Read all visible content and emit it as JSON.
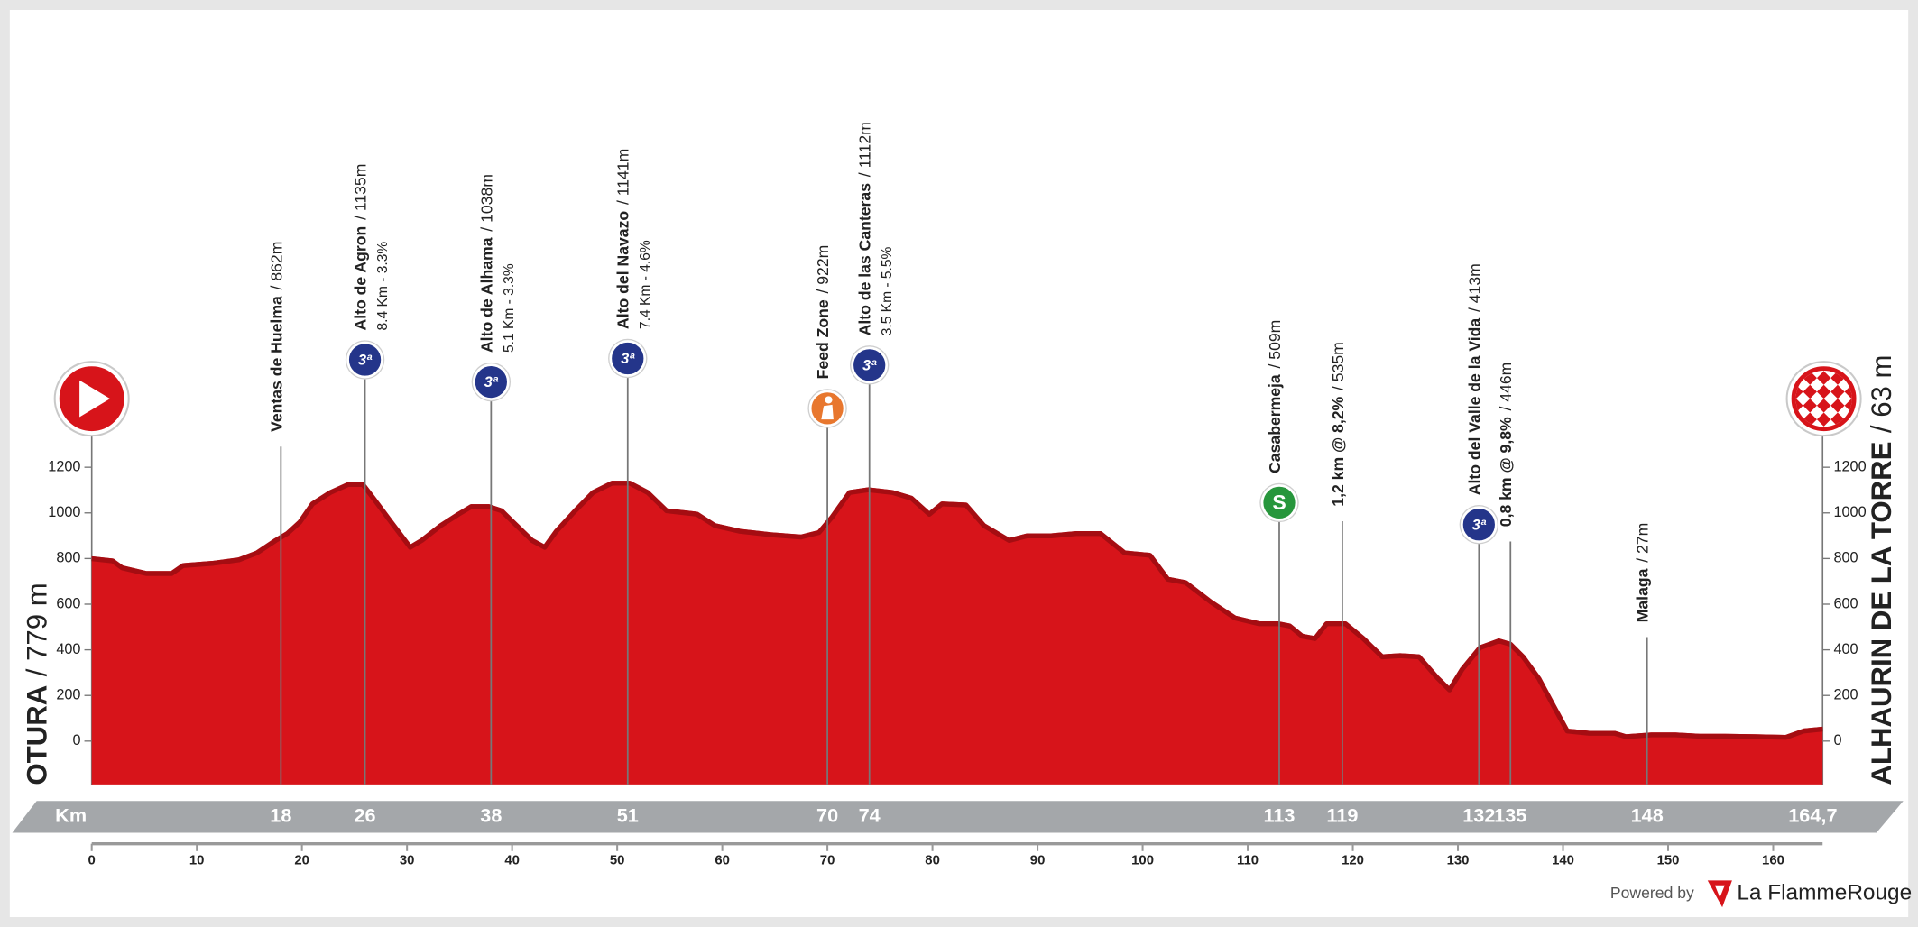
{
  "chart_data": {
    "type": "area",
    "color": "#d7141a",
    "ridge_color": "#a50d12",
    "xlim": [
      0,
      164.7
    ],
    "xticks": [
      0,
      10,
      20,
      30,
      40,
      50,
      60,
      70,
      80,
      90,
      100,
      110,
      120,
      130,
      140,
      150,
      160
    ],
    "ylim": [
      -190,
      1300
    ],
    "yticks": [
      0,
      200,
      400,
      600,
      800,
      1000,
      1200
    ],
    "km_label": "Km",
    "x": [
      0,
      2,
      2.9,
      5.2,
      7.6,
      8.7,
      11.6,
      14,
      15.7,
      17.5,
      18.6,
      19.8,
      21,
      22.7,
      24.4,
      25.8,
      26.8,
      28.5,
      30.3,
      31.4,
      33.2,
      34.9,
      36.1,
      37.8,
      39,
      40.1,
      41.9,
      43.1,
      44.2,
      46,
      47.7,
      49.5,
      51.2,
      52.9,
      54.7,
      57.6,
      59.3,
      61.7,
      64.6,
      67.5,
      69.2,
      70.4,
      72.1,
      73.9,
      76.2,
      78,
      79.7,
      80.9,
      83.2,
      84.9,
      87.3,
      89,
      91.3,
      93.7,
      96,
      98.3,
      100.7,
      102.4,
      104.1,
      106.5,
      108.8,
      111.1,
      112.9,
      114,
      115.2,
      116.4,
      117.5,
      119.3,
      121,
      122.8,
      124.5,
      126.3,
      128,
      129.2,
      130.4,
      132.1,
      133.9,
      135,
      136.2,
      137.7,
      139.1,
      140.4,
      142.5,
      144.9,
      146,
      148.4,
      150.7,
      153,
      155.4,
      158.3,
      161.2,
      162.9,
      164.7
    ],
    "values": [
      810,
      800,
      770,
      745,
      745,
      780,
      790,
      805,
      835,
      890,
      920,
      970,
      1050,
      1100,
      1135,
      1135,
      1075,
      970,
      860,
      890,
      955,
      1005,
      1038,
      1038,
      1020,
      970,
      890,
      860,
      930,
      1020,
      1100,
      1141,
      1141,
      1100,
      1020,
      1005,
      955,
      930,
      915,
      905,
      925,
      990,
      1100,
      1112,
      1100,
      1075,
      1005,
      1050,
      1045,
      955,
      890,
      910,
      910,
      920,
      920,
      835,
      825,
      720,
      705,
      620,
      550,
      525,
      525,
      515,
      470,
      460,
      525,
      525,
      460,
      380,
      385,
      380,
      290,
      235,
      325,
      420,
      450,
      435,
      380,
      285,
      165,
      55,
      45,
      45,
      30,
      38,
      38,
      32,
      32,
      30,
      27,
      55,
      63
    ],
    "start": {
      "name": "OTURA",
      "elevation": {
        "value": 779,
        "label": "/ 779 m"
      }
    },
    "finish": {
      "name": "ALHAURIN DE LA TORRE",
      "elevation": {
        "value": 63,
        "label": "/ 63 m"
      },
      "km": {
        "value": 164.7,
        "label": "164,7"
      }
    },
    "points_of_interest": [
      {
        "km": 18,
        "name": "Ventas de Huelma",
        "elevation": {
          "value": 862,
          "label": "/ 862m"
        }
      },
      {
        "km": 26,
        "name": "Alto de Agron",
        "elevation": {
          "value": 1135,
          "label": "/ 1135m"
        },
        "detail": "8.4 Km - 3.3%",
        "icon": "climb",
        "badge": "3ª"
      },
      {
        "km": 38,
        "name": "Alto de Alhama",
        "elevation": {
          "value": 1038,
          "label": "/ 1038m"
        },
        "detail": "5.1 Km - 3.3%",
        "icon": "climb",
        "badge": "3ª"
      },
      {
        "km": 51,
        "name": "Alto del Navazo",
        "elevation": {
          "value": 1141,
          "label": "/ 1141m"
        },
        "detail": "7.4 Km - 4.6%",
        "icon": "climb",
        "badge": "3ª"
      },
      {
        "km": 70,
        "name": "Feed Zone",
        "elevation": {
          "value": 922,
          "label": "/ 922m"
        },
        "icon": "feed"
      },
      {
        "km": 74,
        "name": "Alto de las Canteras",
        "elevation": {
          "value": 1112,
          "label": "/ 1112m"
        },
        "detail": "3.5 Km - 5.5%",
        "icon": "climb",
        "badge": "3ª"
      },
      {
        "km": 113,
        "name": "Casabermeja",
        "elevation": {
          "value": 509,
          "label": "/ 509m"
        },
        "icon": "sprint",
        "badge": "S"
      },
      {
        "km": 119,
        "name": "1,2 km @ 8,2%",
        "elevation": {
          "value": 535,
          "label": "/ 535m"
        }
      },
      {
        "km": 132,
        "name": "Alto del Valle de la Vida",
        "elevation": {
          "value": 413,
          "label": "/ 413m"
        },
        "icon": "climb",
        "badge": "3ª"
      },
      {
        "km": 135,
        "name": "0,8 km @ 9,8%",
        "elevation": {
          "value": 446,
          "label": "/ 446m"
        }
      },
      {
        "km": 148,
        "name": "Malaga",
        "elevation": {
          "value": 27,
          "label": "/ 27m"
        }
      }
    ]
  },
  "footer": {
    "powered_by": "Powered by",
    "brand": "La FlammeRouge"
  }
}
